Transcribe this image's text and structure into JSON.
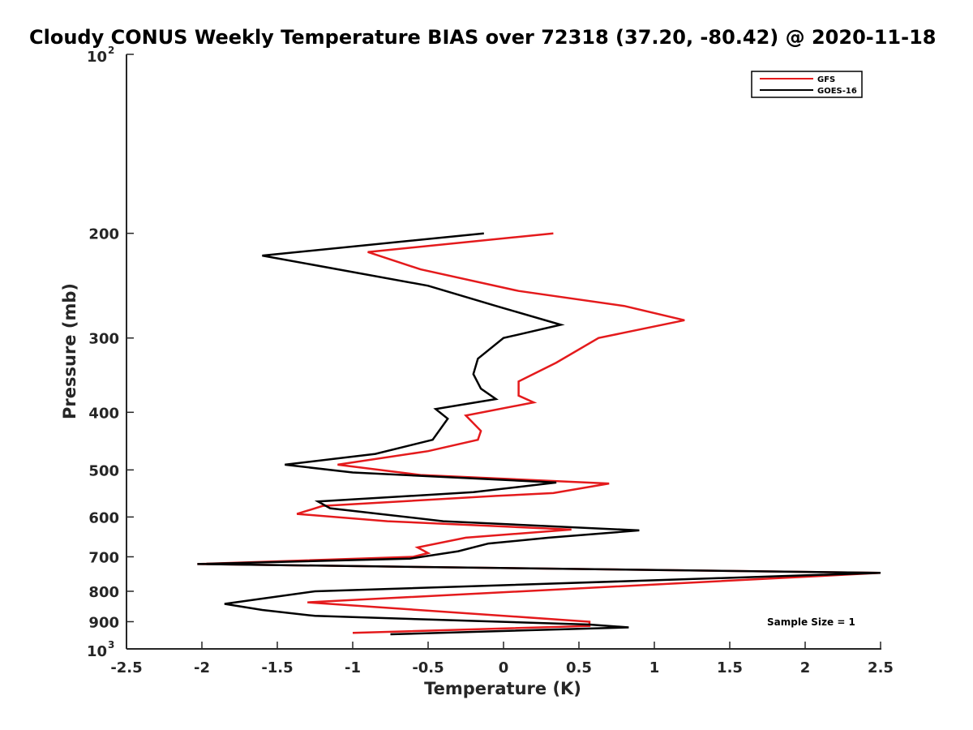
{
  "chart_data": {
    "type": "line",
    "title": "Cloudy CONUS Weekly Temperature BIAS over 72318 (37.20, -80.42) @ 2020-11-18",
    "xlabel": "Temperature (K)",
    "ylabel": "Pressure (mb)",
    "xlim": [
      -2.5,
      2.5
    ],
    "ylim": [
      100,
      1000
    ],
    "yscale": "log",
    "y_reversed": true,
    "grid": false,
    "legend_position": "top-right",
    "x_ticks": [
      -2.5,
      -2,
      -1.5,
      -1,
      -0.5,
      0,
      0.5,
      1,
      1.5,
      2,
      2.5
    ],
    "x_tick_labels": [
      "-2.5",
      "-2",
      "-1.5",
      "-1",
      "-0.5",
      "0",
      "0.5",
      "1",
      "1.5",
      "2",
      "2.5"
    ],
    "y_ticks": [
      200,
      300,
      400,
      500,
      600,
      700,
      800,
      900
    ],
    "y_tick_labels": [
      "200",
      "300",
      "400",
      "500",
      "600",
      "700",
      "800",
      "900"
    ],
    "y_end_ticks": [
      {
        "value": 100,
        "base": "10",
        "exp": "2"
      },
      {
        "value": 1000,
        "base": "10",
        "exp": "3"
      }
    ],
    "annotation": "Sample Size = 1",
    "series": [
      {
        "name": "GFS",
        "color": "#e41a1c",
        "points": [
          [
            0.33,
            200
          ],
          [
            -0.9,
            215
          ],
          [
            -0.55,
            230
          ],
          [
            0.1,
            250
          ],
          [
            0.8,
            265
          ],
          [
            1.2,
            280
          ],
          [
            0.63,
            300
          ],
          [
            0.35,
            330
          ],
          [
            0.1,
            355
          ],
          [
            0.1,
            375
          ],
          [
            0.2,
            385
          ],
          [
            -0.25,
            405
          ],
          [
            -0.15,
            430
          ],
          [
            -0.17,
            445
          ],
          [
            -0.5,
            465
          ],
          [
            -1.1,
            490
          ],
          [
            -0.55,
            510
          ],
          [
            0.7,
            527
          ],
          [
            0.33,
            547
          ],
          [
            -0.05,
            553
          ],
          [
            -1.2,
            575
          ],
          [
            -1.37,
            593
          ],
          [
            -0.77,
            610
          ],
          [
            0.45,
            630
          ],
          [
            -0.25,
            650
          ],
          [
            -0.57,
            675
          ],
          [
            -0.5,
            690
          ],
          [
            -0.6,
            700
          ],
          [
            -2.03,
            720
          ],
          [
            2.5,
            745
          ],
          [
            -1.3,
            835
          ],
          [
            0.57,
            900
          ],
          [
            0.57,
            915
          ],
          [
            -1.0,
            940
          ]
        ]
      },
      {
        "name": "GOES-16",
        "color": "#000000",
        "points": [
          [
            -0.13,
            200
          ],
          [
            -1.6,
            218
          ],
          [
            -0.5,
            245
          ],
          [
            -0.05,
            265
          ],
          [
            0.38,
            285
          ],
          [
            0.0,
            300
          ],
          [
            -0.17,
            325
          ],
          [
            -0.2,
            345
          ],
          [
            -0.15,
            365
          ],
          [
            -0.05,
            380
          ],
          [
            -0.45,
            395
          ],
          [
            -0.37,
            410
          ],
          [
            -0.47,
            445
          ],
          [
            -0.85,
            470
          ],
          [
            -1.45,
            490
          ],
          [
            -1.0,
            505
          ],
          [
            0.35,
            525
          ],
          [
            -0.2,
            545
          ],
          [
            -1.23,
            565
          ],
          [
            -1.15,
            580
          ],
          [
            -0.4,
            610
          ],
          [
            0.9,
            632
          ],
          [
            0.3,
            650
          ],
          [
            -0.1,
            665
          ],
          [
            -0.3,
            685
          ],
          [
            -0.62,
            705
          ],
          [
            -2.03,
            720
          ],
          [
            2.5,
            745
          ],
          [
            -1.25,
            800
          ],
          [
            -1.85,
            840
          ],
          [
            -1.6,
            860
          ],
          [
            -1.25,
            880
          ],
          [
            0.57,
            910
          ],
          [
            0.83,
            920
          ],
          [
            -0.75,
            945
          ]
        ]
      }
    ]
  }
}
